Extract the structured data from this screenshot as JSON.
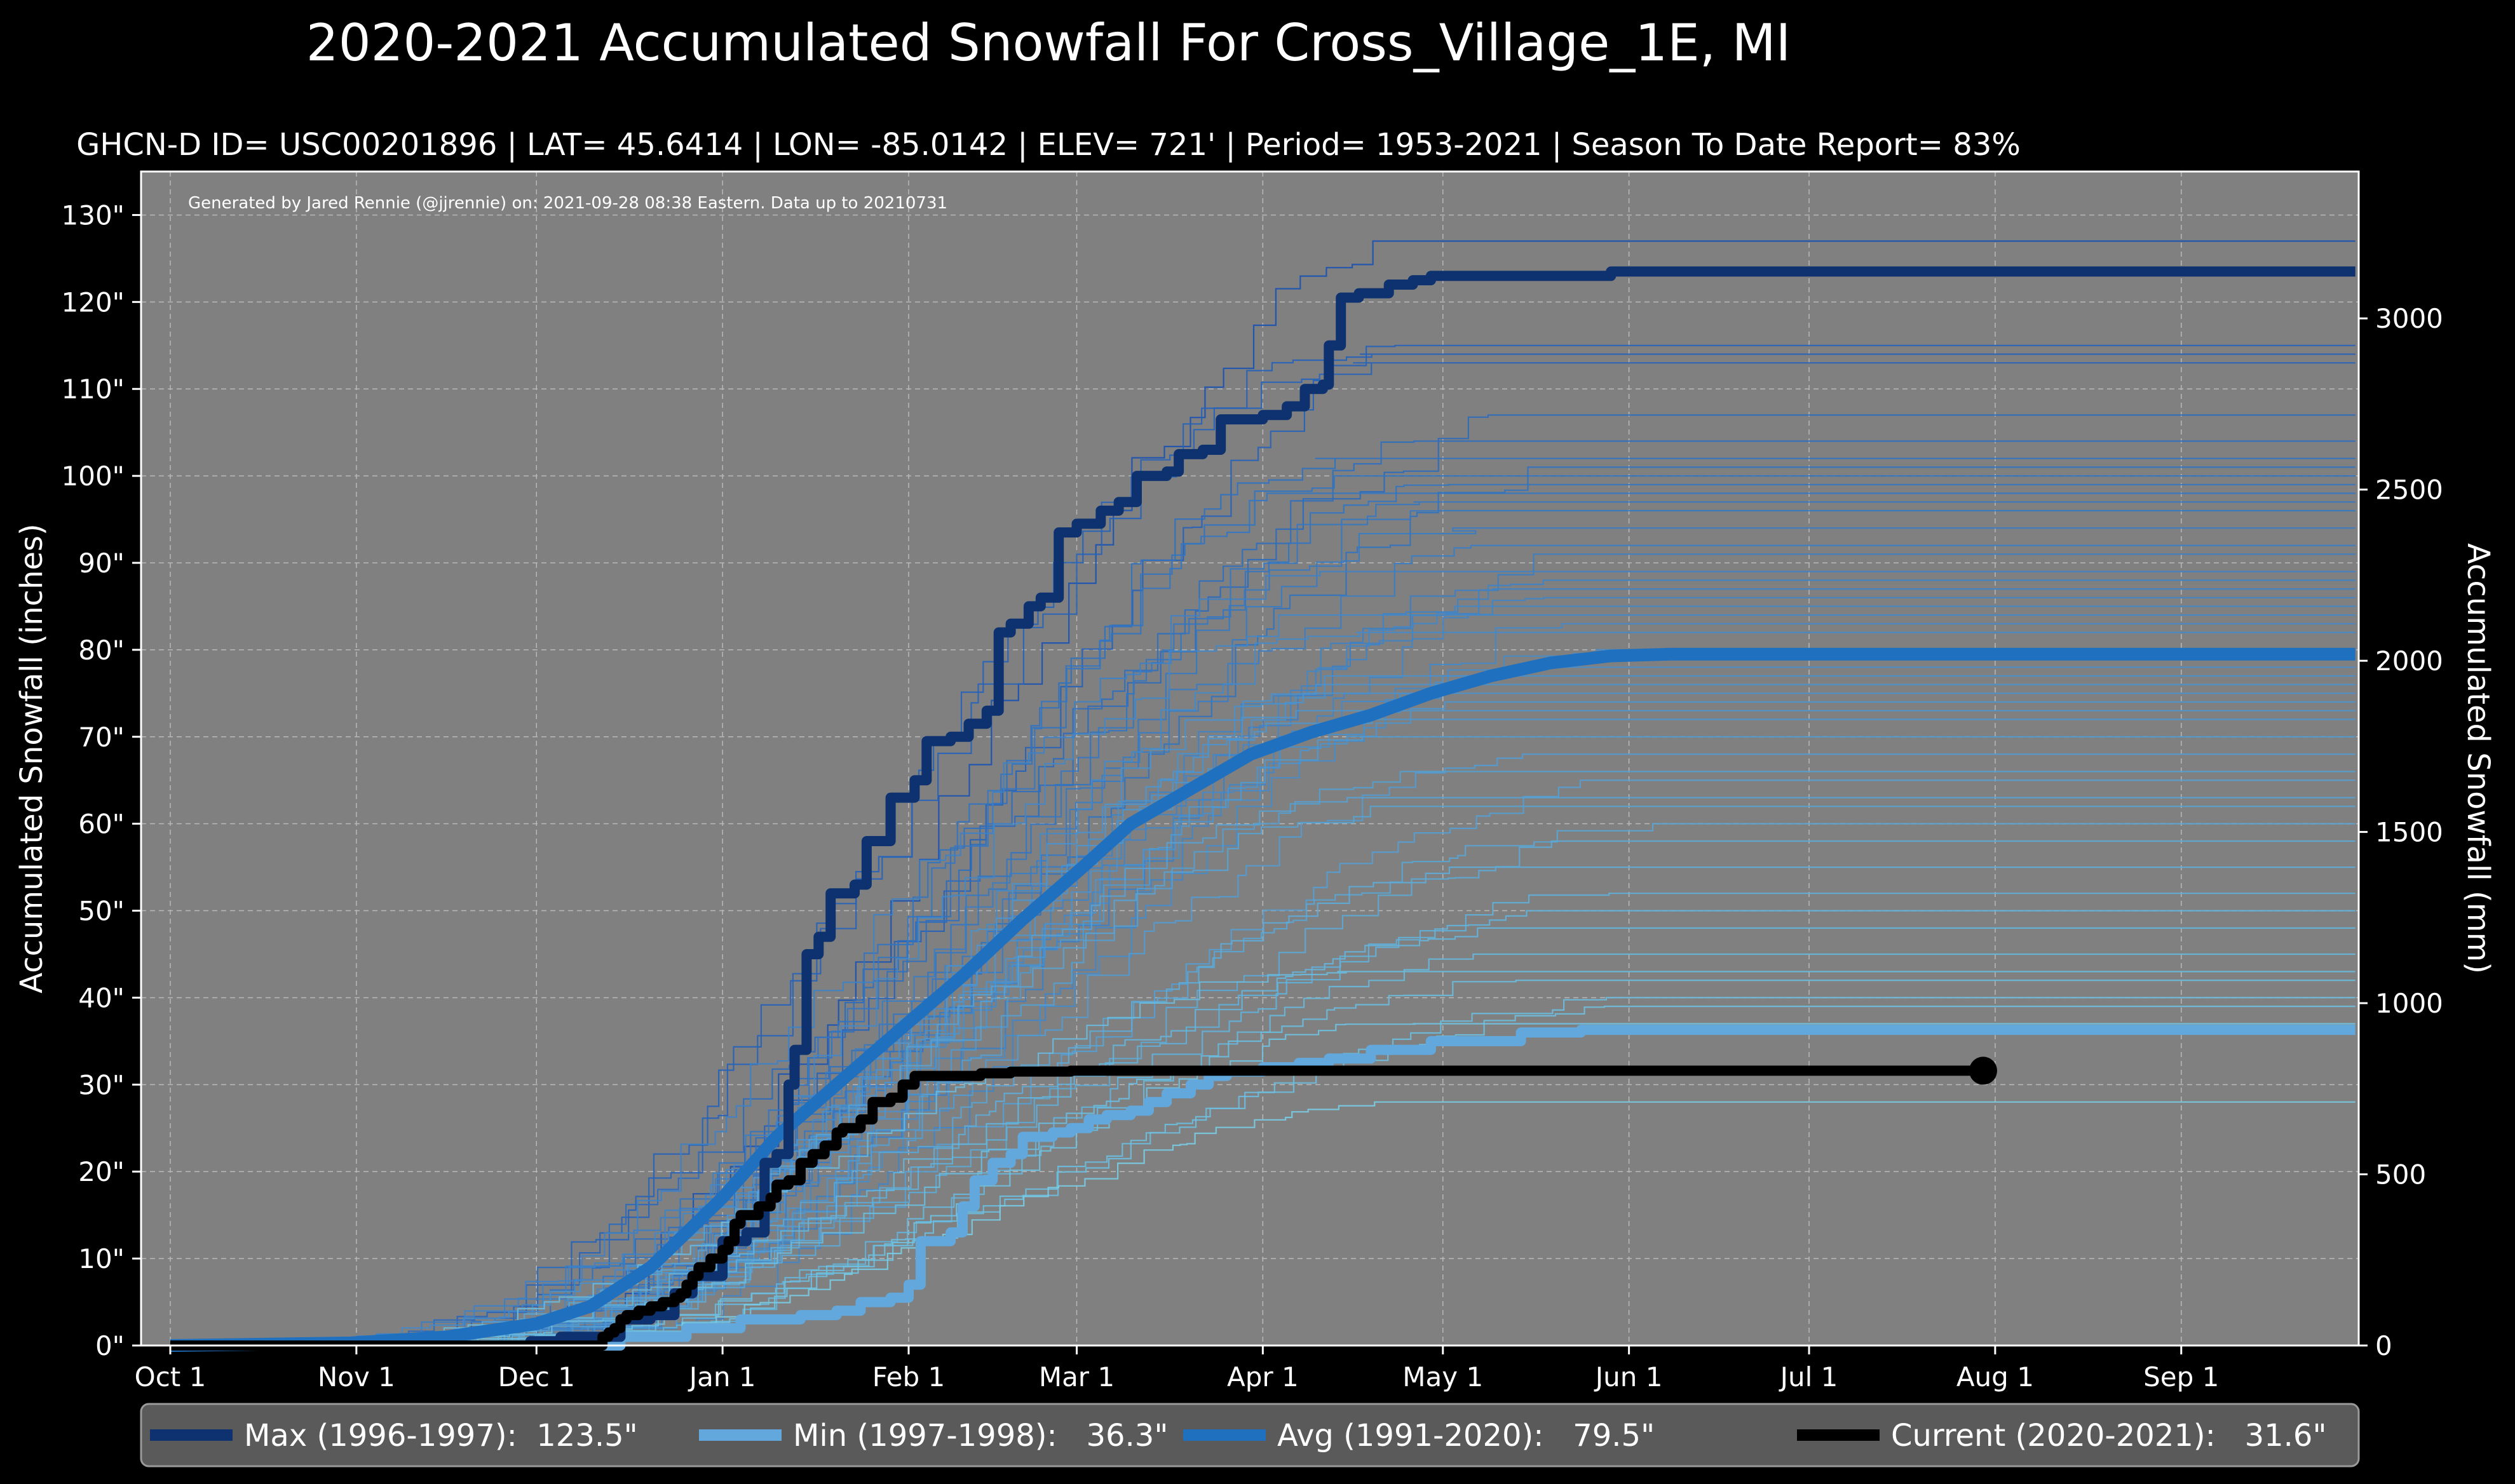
{
  "chart_data": {
    "type": "line",
    "title": "2020-2021 Accumulated Snowfall For Cross_Village_1E, MI",
    "subtitle": "GHCN-D ID= USC00201896 | LAT= 45.6414 | LON= -85.0142 | ELEV= 721' | Period= 1953-2021 | Season To Date Report= 83%",
    "credit": "Generated by Jared Rennie (@jjrennie) on: 2021-09-28 08:38 Eastern. Data up to 20210731",
    "ylabel": "Accumulated Snowfall (inches)",
    "ylabel_right": "Accumulated Snowfall (mm)",
    "ylim": [
      0,
      135
    ],
    "y_ticks": [
      "0\"",
      "10\"",
      "20\"",
      "30\"",
      "40\"",
      "50\"",
      "60\"",
      "70\"",
      "80\"",
      "90\"",
      "100\"",
      "110\"",
      "120\"",
      "130\""
    ],
    "y_right_ticks": [
      "0",
      "500",
      "1000",
      "1500",
      "2000",
      "2500",
      "3000"
    ],
    "x_ticks": [
      "Oct 1",
      "Nov 1",
      "Dec 1",
      "Jan 1",
      "Feb 1",
      "Mar 1",
      "Apr 1",
      "May 1",
      "Jun 1",
      "Jul 1",
      "Aug 1",
      "Sep 1"
    ],
    "grid": true,
    "legend_position": "bottom",
    "background": "#808080",
    "series": [
      {
        "name": "Max (1996-1997):  123.5\"",
        "color": "#0e3270",
        "points": [
          [
            0,
            0
          ],
          [
            32,
            0
          ],
          [
            60,
            0.5
          ],
          [
            65,
            1
          ],
          [
            75,
            3
          ],
          [
            80,
            3.5
          ],
          [
            84,
            6
          ],
          [
            87,
            8
          ],
          [
            92,
            12
          ],
          [
            96,
            13
          ],
          [
            99,
            21
          ],
          [
            101,
            22
          ],
          [
            103,
            30
          ],
          [
            104,
            34
          ],
          [
            106,
            45
          ],
          [
            108,
            47
          ],
          [
            110,
            52
          ],
          [
            114,
            53
          ],
          [
            116,
            58
          ],
          [
            120,
            63
          ],
          [
            124,
            65
          ],
          [
            126,
            69.5
          ],
          [
            130,
            70
          ],
          [
            133,
            71.5
          ],
          [
            136,
            73
          ],
          [
            138,
            82
          ],
          [
            140,
            83
          ],
          [
            143,
            85
          ],
          [
            145,
            86
          ],
          [
            148,
            93.5
          ],
          [
            151,
            94.5
          ],
          [
            155,
            96
          ],
          [
            158,
            97
          ],
          [
            161,
            100
          ],
          [
            166,
            100.5
          ],
          [
            168,
            102.5
          ],
          [
            172,
            103
          ],
          [
            175,
            106.5
          ],
          [
            182,
            107
          ],
          [
            186,
            108
          ],
          [
            189,
            110
          ],
          [
            192,
            110.5
          ],
          [
            193,
            115
          ],
          [
            195,
            120.5
          ],
          [
            198,
            121
          ],
          [
            203,
            122
          ],
          [
            207,
            122.5
          ],
          [
            210,
            123
          ],
          [
            235,
            123
          ],
          [
            240,
            123.5
          ],
          [
            364,
            123.5
          ]
        ]
      },
      {
        "name": "Min (1997-1998):   36.3\"",
        "color": "#62a8dc",
        "points": [
          [
            0,
            0
          ],
          [
            70,
            0
          ],
          [
            75,
            1
          ],
          [
            86,
            2
          ],
          [
            95,
            3
          ],
          [
            105,
            3.5
          ],
          [
            111,
            4
          ],
          [
            115,
            5
          ],
          [
            120,
            5.5
          ],
          [
            123,
            7
          ],
          [
            125,
            12
          ],
          [
            130,
            13
          ],
          [
            132,
            16
          ],
          [
            134,
            19
          ],
          [
            137,
            21
          ],
          [
            140,
            22
          ],
          [
            142,
            24
          ],
          [
            147,
            24.5
          ],
          [
            150,
            25
          ],
          [
            153,
            26
          ],
          [
            156,
            26.5
          ],
          [
            160,
            27
          ],
          [
            163,
            28
          ],
          [
            166,
            29
          ],
          [
            170,
            30
          ],
          [
            173,
            31
          ],
          [
            176,
            31.5
          ],
          [
            182,
            32
          ],
          [
            188,
            32.5
          ],
          [
            193,
            33
          ],
          [
            200,
            34
          ],
          [
            210,
            35
          ],
          [
            225,
            36
          ],
          [
            235,
            36.3
          ],
          [
            364,
            36.3
          ]
        ]
      },
      {
        "name": "Avg (1991-2020):   79.5\"",
        "color": "#2070c0",
        "points": [
          [
            0,
            0
          ],
          [
            30,
            0.3
          ],
          [
            46,
            1
          ],
          [
            61,
            2.5
          ],
          [
            70,
            4.5
          ],
          [
            80,
            9
          ],
          [
            92,
            17
          ],
          [
            101,
            24
          ],
          [
            111,
            30
          ],
          [
            121,
            36
          ],
          [
            132,
            42.5
          ],
          [
            142,
            49
          ],
          [
            152,
            55
          ],
          [
            160,
            60
          ],
          [
            170,
            64
          ],
          [
            180,
            68
          ],
          [
            190,
            70.5
          ],
          [
            200,
            72.5
          ],
          [
            210,
            75
          ],
          [
            220,
            77
          ],
          [
            230,
            78.5
          ],
          [
            240,
            79.3
          ],
          [
            250,
            79.5
          ],
          [
            364,
            79.5
          ]
        ]
      },
      {
        "name": "Current (2020-2021):   31.6\"",
        "color": "#000000",
        "points": [
          [
            0,
            0
          ],
          [
            71,
            0
          ],
          [
            72,
            1
          ],
          [
            73,
            1.5
          ],
          [
            74,
            2
          ],
          [
            75,
            3
          ],
          [
            76,
            3.5
          ],
          [
            78,
            4
          ],
          [
            80,
            4.5
          ],
          [
            82,
            5
          ],
          [
            84,
            5.5
          ],
          [
            85,
            6
          ],
          [
            86,
            7
          ],
          [
            87,
            8
          ],
          [
            88,
            9
          ],
          [
            90,
            10
          ],
          [
            92,
            11
          ],
          [
            93,
            12
          ],
          [
            94,
            14
          ],
          [
            95,
            15
          ],
          [
            98,
            16
          ],
          [
            100,
            17
          ],
          [
            101,
            18.5
          ],
          [
            103,
            19
          ],
          [
            105,
            21
          ],
          [
            107,
            22
          ],
          [
            109,
            23
          ],
          [
            111,
            24.5
          ],
          [
            112,
            25
          ],
          [
            115,
            26
          ],
          [
            117,
            28
          ],
          [
            120,
            28.5
          ],
          [
            122,
            30
          ],
          [
            124,
            31
          ],
          [
            135,
            31.3
          ],
          [
            140,
            31.5
          ],
          [
            150,
            31.6
          ],
          [
            302,
            31.6
          ]
        ]
      }
    ],
    "secondary_lines_note": "",
    "current_endpoint": [
      302,
      31.6
    ]
  }
}
